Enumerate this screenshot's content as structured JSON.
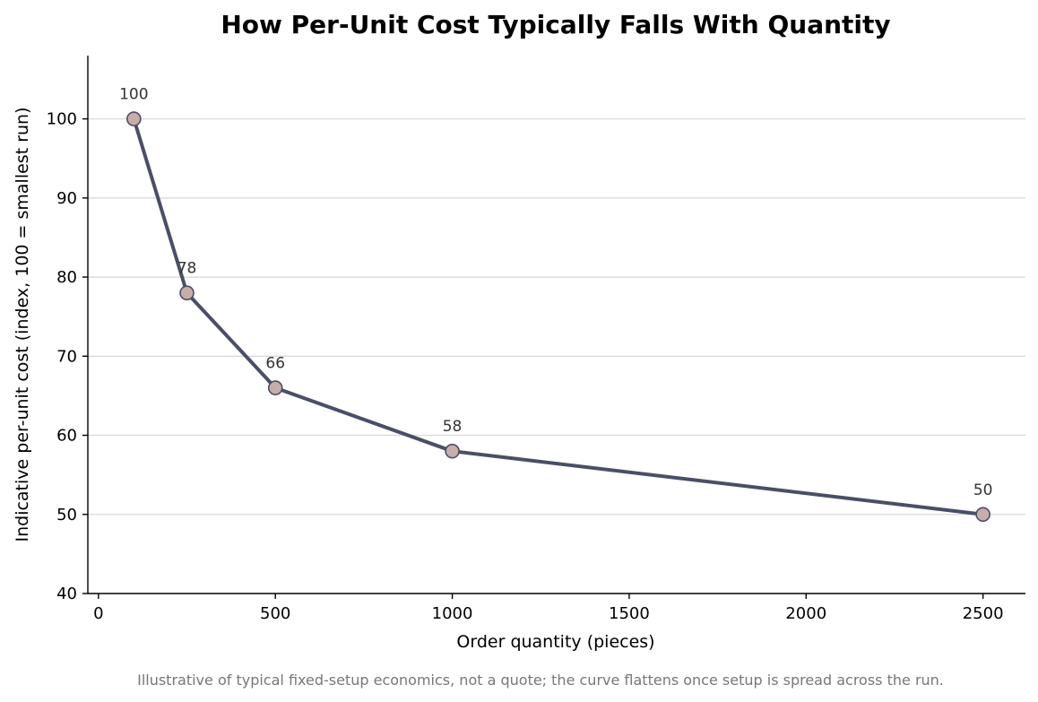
{
  "chart_data": {
    "type": "line",
    "title": "How Per-Unit Cost Typically Falls With Quantity",
    "xlabel": "Order quantity (pieces)",
    "ylabel": "Indicative per-unit cost (index, 100 = smallest run)",
    "footnote": "Illustrative of typical fixed-setup economics, not a quote; the curve flattens once setup is spread across the run.",
    "x": [
      100,
      250,
      500,
      1000,
      2500
    ],
    "series": [
      {
        "values": [
          100,
          78,
          66,
          58,
          50
        ],
        "data_labels": [
          "100",
          "78",
          "66",
          "58",
          "50"
        ]
      }
    ],
    "xlim": [
      -30,
      2620
    ],
    "ylim": [
      40,
      108
    ],
    "xticks": [
      0,
      500,
      1000,
      1500,
      2000,
      2500
    ],
    "xtick_labels": [
      "0",
      "500",
      "1000",
      "1500",
      "2000",
      "2500"
    ],
    "yticks": [
      40,
      50,
      60,
      70,
      80,
      90,
      100
    ],
    "ytick_labels": [
      "40",
      "50",
      "60",
      "70",
      "80",
      "90",
      "100"
    ],
    "grid": "horizontal",
    "legend": "none",
    "colors": {
      "line": "#4a4e69",
      "marker_fill": "#c9ada7",
      "marker_edge": "#4a4e69",
      "grid": "#d9d9d9",
      "footnote": "#777777"
    }
  }
}
